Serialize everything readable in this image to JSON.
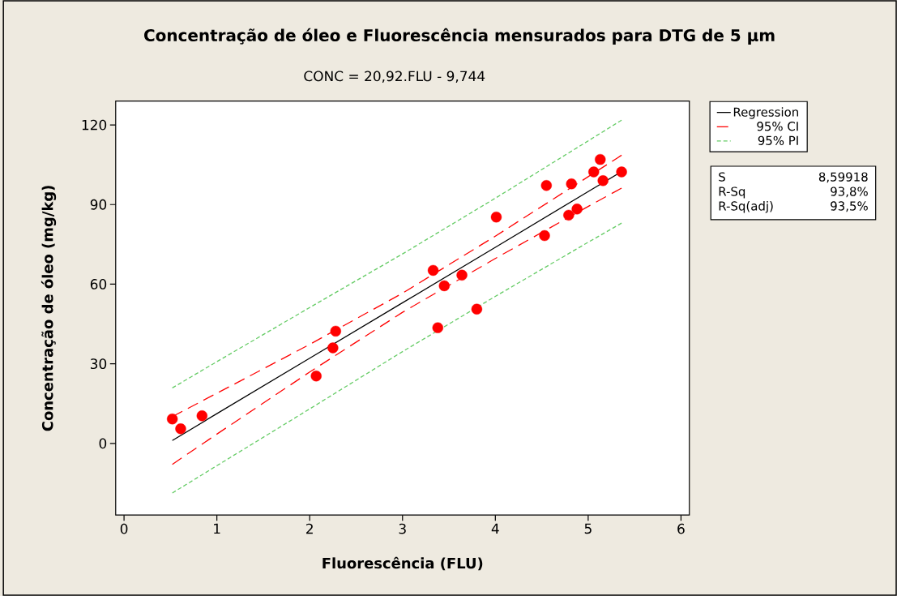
{
  "chart_data": {
    "type": "scatter",
    "title": "Concentração de óleo e Fluorescência mensurados para DTG de 5 µm",
    "subtitle": "CONC = 20,92.FLU - 9,744",
    "xlabel": "Fluorescência (FLU)",
    "ylabel": "Concentração de óleo (mg/kg)",
    "xlim": [
      -0.09,
      6.09
    ],
    "ylim": [
      -27,
      129
    ],
    "xticks": [
      0,
      1,
      2,
      3,
      4,
      5,
      6
    ],
    "yticks": [
      0,
      30,
      60,
      90,
      120
    ],
    "legend": "right",
    "annotations": [
      "S",
      "8,59918",
      "R-Sq",
      "93,8%",
      "R-Sq(adj)",
      "93,5%"
    ],
    "series": [
      {
        "name": "Regression",
        "type": "line",
        "color": "#000000",
        "line_style": "solid",
        "x": [
          0.52,
          1,
          2,
          3,
          4,
          5,
          5.36
        ],
        "values": [
          1.1,
          11.2,
          32.1,
          53.0,
          73.9,
          94.9,
          102.4
        ]
      },
      {
        "name": "95% CI",
        "type": "line",
        "color": "#ff0000",
        "line_style": "dashed",
        "x": [
          0.52,
          1,
          2,
          3,
          4,
          5,
          5.36
        ],
        "values": [
          10.1,
          18.9,
          37.3,
          56.6,
          78.1,
          100.5,
          108.6
        ]
      },
      {
        "type": "line",
        "color": "#ff0000",
        "line_style": "dashed",
        "x": [
          0.52,
          1,
          2,
          3,
          4,
          5,
          5.36
        ],
        "values": [
          -7.9,
          3.5,
          26.9,
          49.4,
          69.7,
          89.3,
          96.2
        ]
      },
      {
        "name": "95% PI",
        "type": "line",
        "color": "#66cc66",
        "line_style": "dotted",
        "x": [
          0.52,
          1,
          2,
          3,
          4,
          5,
          5.36
        ],
        "values": [
          20.9,
          30.8,
          51.2,
          71.4,
          92.4,
          114.0,
          121.8
        ]
      },
      {
        "type": "line",
        "color": "#66cc66",
        "line_style": "dotted",
        "x": [
          0.52,
          1,
          2,
          3,
          4,
          5,
          5.36
        ],
        "values": [
          -18.7,
          -8.4,
          13.0,
          34.6,
          55.4,
          75.8,
          83.0
        ]
      },
      {
        "color": "#ff0000",
        "marker": "circle",
        "x": [
          0.52,
          0.61,
          0.84,
          2.07,
          2.25,
          2.28,
          3.33,
          3.38,
          3.45,
          3.64,
          3.8,
          4.01,
          4.53,
          4.55,
          4.79,
          4.82,
          4.88,
          5.06,
          5.13,
          5.16,
          5.36
        ],
        "values": [
          9.2,
          5.5,
          10.4,
          25.4,
          36.0,
          42.3,
          65.2,
          43.6,
          59.4,
          63.4,
          50.6,
          85.3,
          78.3,
          97.2,
          86.0,
          97.8,
          88.3,
          102.3,
          107.0,
          99.0,
          102.3
        ]
      }
    ]
  }
}
